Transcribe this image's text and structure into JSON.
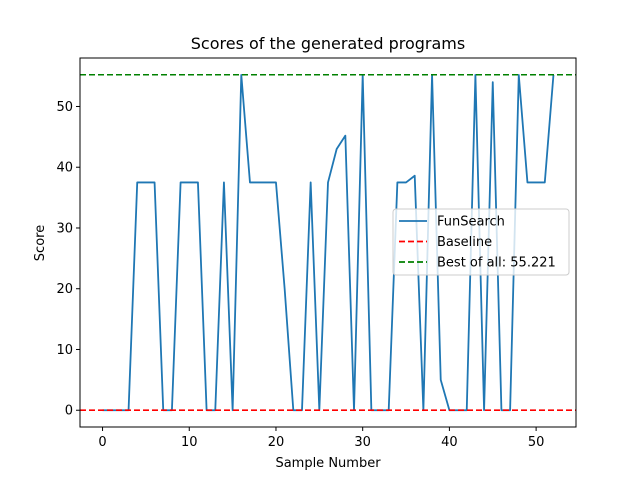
{
  "chart_data": {
    "type": "line",
    "title": "Scores of the generated programs",
    "xlabel": "Sample Number",
    "ylabel": "Score",
    "xlim": [
      -2.6,
      54.6
    ],
    "ylim": [
      -2.76,
      57.98
    ],
    "xticks": [
      0,
      10,
      20,
      30,
      40,
      50
    ],
    "yticks": [
      0,
      10,
      20,
      30,
      40,
      50
    ],
    "grid": false,
    "legend_position": "center-right",
    "series": [
      {
        "name": "FunSearch",
        "color": "#1f77b4",
        "style": "solid",
        "x": [
          0,
          1,
          2,
          3,
          4,
          5,
          6,
          7,
          8,
          9,
          10,
          11,
          12,
          13,
          14,
          15,
          16,
          17,
          18,
          19,
          20,
          21,
          22,
          23,
          24,
          25,
          26,
          27,
          28,
          29,
          30,
          31,
          32,
          33,
          34,
          35,
          36,
          37,
          38,
          39,
          40,
          41,
          42,
          43,
          44,
          45,
          46,
          47,
          48,
          49,
          50,
          51,
          52
        ],
        "y": [
          0,
          0,
          0,
          0,
          37.5,
          37.5,
          37.5,
          0,
          0,
          37.5,
          37.5,
          37.5,
          0,
          0,
          37.5,
          0,
          55.2,
          37.5,
          37.5,
          37.5,
          37.5,
          20,
          0,
          0,
          37.5,
          0,
          37.5,
          43,
          45.2,
          0,
          55.2,
          0,
          0,
          0,
          37.5,
          37.5,
          38.6,
          0,
          55.2,
          5,
          0,
          0,
          0,
          55.2,
          0,
          54,
          0,
          0,
          55.2,
          37.5,
          37.5,
          37.5,
          55.2
        ]
      },
      {
        "name": "Baseline",
        "color": "#ff0000",
        "style": "dashed",
        "y_constant": 0
      },
      {
        "name": "Best of all: 55.221",
        "color": "#008000",
        "style": "dashed",
        "y_constant": 55.221
      }
    ]
  }
}
